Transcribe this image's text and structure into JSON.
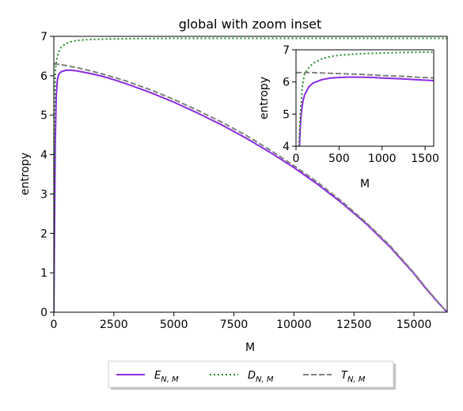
{
  "chart_data": [
    {
      "panel": "main",
      "type": "line",
      "title": "global with zoom inset",
      "xlabel": "M",
      "ylabel": "entropy",
      "xlim": [
        0,
        16384
      ],
      "ylim": [
        0,
        7
      ],
      "xticks": [
        0,
        2500,
        5000,
        7500,
        10000,
        12500,
        15000
      ],
      "xtick_labels": [
        "0",
        "2500",
        "5000",
        "7500",
        "10000",
        "12500",
        "15000"
      ],
      "yticks": [
        0,
        1,
        2,
        3,
        4,
        5,
        6,
        7
      ],
      "ytick_labels": [
        "0",
        "1",
        "2",
        "3",
        "4",
        "5",
        "6",
        "7"
      ],
      "grid": false,
      "series": [
        {
          "name": "E_{N,M}",
          "label_main": "E",
          "label_sub": "N, M",
          "color": "#8a2be2",
          "style": "solid",
          "points": [
            [
              0,
              0
            ],
            [
              30,
              2.2
            ],
            [
              60,
              4.3
            ],
            [
              100,
              5.5
            ],
            [
              150,
              5.9
            ],
            [
              200,
              6.03
            ],
            [
              300,
              6.1
            ],
            [
              500,
              6.14
            ],
            [
              750,
              6.14
            ],
            [
              1000,
              6.12
            ],
            [
              1500,
              6.06
            ],
            [
              2000,
              5.99
            ],
            [
              2500,
              5.9
            ],
            [
              3000,
              5.8
            ],
            [
              4000,
              5.58
            ],
            [
              5000,
              5.33
            ],
            [
              6000,
              5.05
            ],
            [
              7000,
              4.75
            ],
            [
              8000,
              4.42
            ],
            [
              9000,
              4.06
            ],
            [
              10000,
              3.67
            ],
            [
              11000,
              3.24
            ],
            [
              12000,
              2.77
            ],
            [
              13000,
              2.25
            ],
            [
              14000,
              1.66
            ],
            [
              15000,
              0.98
            ],
            [
              15500,
              0.6
            ],
            [
              16000,
              0.25
            ],
            [
              16384,
              0
            ]
          ]
        },
        {
          "name": "D_{N,M}",
          "label_main": "D",
          "label_sub": "N, M",
          "color": "#228b22",
          "style": "dotted",
          "points": [
            [
              0,
              0
            ],
            [
              30,
              4.8
            ],
            [
              60,
              6.1
            ],
            [
              100,
              6.35
            ],
            [
              150,
              6.5
            ],
            [
              200,
              6.6
            ],
            [
              300,
              6.72
            ],
            [
              500,
              6.82
            ],
            [
              750,
              6.87
            ],
            [
              1000,
              6.9
            ],
            [
              1500,
              6.92
            ],
            [
              2000,
              6.93
            ],
            [
              3000,
              6.94
            ],
            [
              5000,
              6.95
            ],
            [
              8000,
              6.95
            ],
            [
              12000,
              6.95
            ],
            [
              16384,
              6.95
            ]
          ]
        },
        {
          "name": "T_{N,M}",
          "label_main": "T",
          "label_sub": "N, M",
          "color": "#808080",
          "style": "dashed",
          "points": [
            [
              0,
              6.3
            ],
            [
              200,
              6.29
            ],
            [
              500,
              6.26
            ],
            [
              1000,
              6.2
            ],
            [
              1500,
              6.13
            ],
            [
              2000,
              6.05
            ],
            [
              3000,
              5.87
            ],
            [
              4000,
              5.65
            ],
            [
              5000,
              5.4
            ],
            [
              6000,
              5.12
            ],
            [
              7000,
              4.82
            ],
            [
              8000,
              4.49
            ],
            [
              9000,
              4.12
            ],
            [
              10000,
              3.72
            ],
            [
              11000,
              3.29
            ],
            [
              12000,
              2.81
            ],
            [
              13000,
              2.28
            ],
            [
              14000,
              1.69
            ],
            [
              15000,
              1.0
            ],
            [
              15500,
              0.62
            ],
            [
              16000,
              0.26
            ],
            [
              16384,
              0
            ]
          ]
        }
      ],
      "legend": {
        "placement": "bottom-center, outside plot",
        "entries": [
          "E_{N,M}",
          "D_{N,M}",
          "T_{N,M}"
        ]
      }
    },
    {
      "panel": "inset",
      "type": "line",
      "title": "",
      "xlabel": "M",
      "ylabel": "entropy",
      "xlim": [
        0,
        1600
      ],
      "ylim": [
        4,
        7
      ],
      "xticks": [
        0,
        500,
        1000,
        1500
      ],
      "xtick_labels": [
        "0",
        "500",
        "1000",
        "1500"
      ],
      "yticks": [
        4,
        5,
        6,
        7
      ],
      "ytick_labels": [
        "4",
        "5",
        "6",
        "7"
      ],
      "grid": false,
      "placement": "top-right inside main plot",
      "series": [
        {
          "name": "E_{N,M}",
          "color": "#8a2be2",
          "style": "solid",
          "points": [
            [
              40,
              4.0
            ],
            [
              50,
              4.6
            ],
            [
              60,
              5.0
            ],
            [
              80,
              5.4
            ],
            [
              100,
              5.6
            ],
            [
              150,
              5.85
            ],
            [
              200,
              5.97
            ],
            [
              300,
              6.07
            ],
            [
              400,
              6.12
            ],
            [
              500,
              6.14
            ],
            [
              600,
              6.15
            ],
            [
              750,
              6.15
            ],
            [
              900,
              6.14
            ],
            [
              1000,
              6.12
            ],
            [
              1200,
              6.1
            ],
            [
              1400,
              6.07
            ],
            [
              1600,
              6.04
            ]
          ]
        },
        {
          "name": "D_{N,M}",
          "color": "#228b22",
          "style": "dotted",
          "points": [
            [
              35,
              4.0
            ],
            [
              50,
              5.0
            ],
            [
              75,
              5.9
            ],
            [
              100,
              6.25
            ],
            [
              150,
              6.45
            ],
            [
              200,
              6.58
            ],
            [
              300,
              6.72
            ],
            [
              400,
              6.79
            ],
            [
              500,
              6.83
            ],
            [
              750,
              6.88
            ],
            [
              1000,
              6.9
            ],
            [
              1250,
              6.92
            ],
            [
              1600,
              6.93
            ]
          ]
        },
        {
          "name": "T_{N,M}",
          "color": "#808080",
          "style": "dashed",
          "points": [
            [
              0,
              6.29
            ],
            [
              200,
              6.29
            ],
            [
              400,
              6.27
            ],
            [
              600,
              6.25
            ],
            [
              800,
              6.23
            ],
            [
              1000,
              6.2
            ],
            [
              1200,
              6.18
            ],
            [
              1400,
              6.15
            ],
            [
              1600,
              6.12
            ]
          ]
        }
      ]
    }
  ]
}
